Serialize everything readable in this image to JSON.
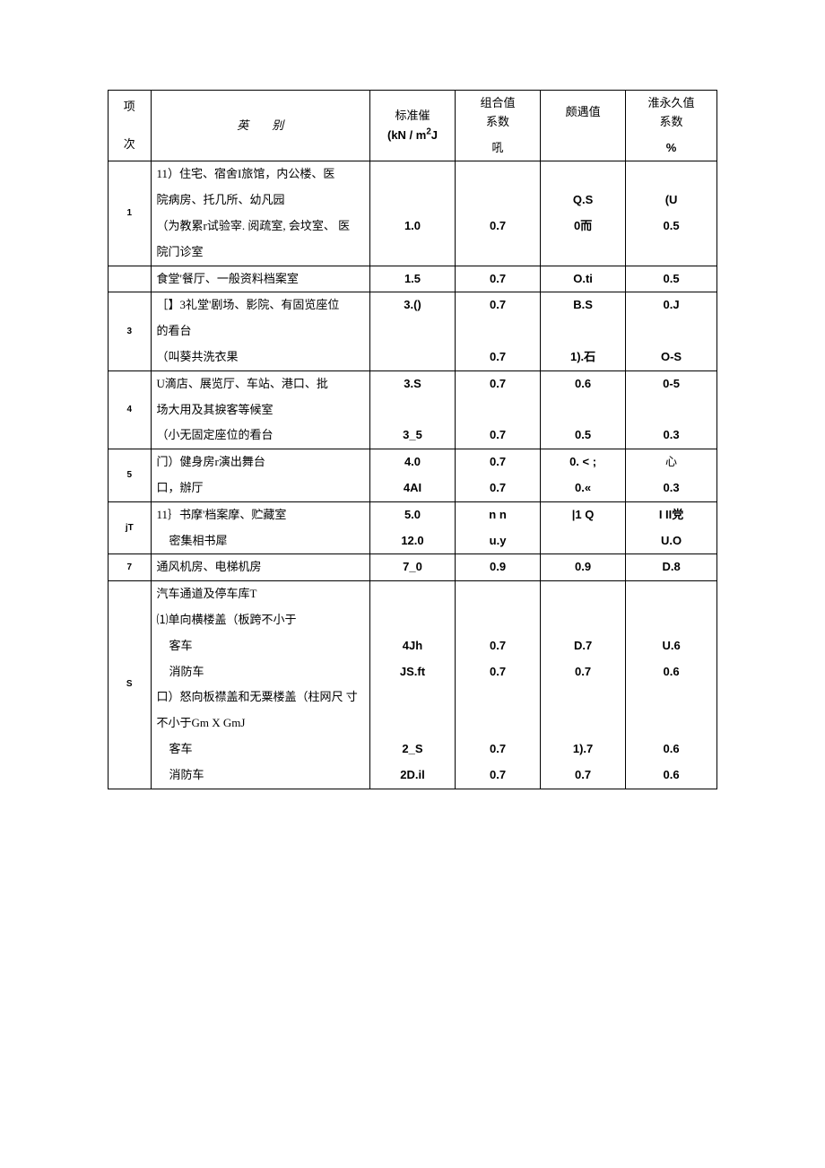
{
  "header": {
    "col1_line1": "项",
    "col1_line2": "次",
    "col2_label_a": "英",
    "col2_label_b": "别",
    "col3_line1": "标准催",
    "col3_unit_pre": "(kN / m",
    "col3_unit_sup": "2",
    "col3_unit_post": "J",
    "col4_line1": "组合值",
    "col4_line2": "系数",
    "col4_line3": "吼",
    "col5_line1": "颇遇值",
    "col6_line1": "淮永久值",
    "col6_line2": "系数",
    "col6_line3": "%"
  },
  "rows": [
    {
      "idx": "1",
      "lines": [
        {
          "cat": "11）住宅、宿舍I旅馆，内公楼、医",
          "std": "",
          "comb": "",
          "freq": "",
          "perm": ""
        },
        {
          "cat": "院病房、托几所、幼凡园",
          "std": "",
          "comb": "",
          "freq": "Q.S",
          "perm": "(U"
        },
        {
          "cat": "（为教累r试验宰. 阅疏室, 会坟室、 医",
          "std": "1.0",
          "comb": "0.7",
          "freq": "0而",
          "perm": "0.5"
        },
        {
          "cat": "院门诊室",
          "std": "",
          "comb": "",
          "freq": "",
          "perm": ""
        }
      ]
    },
    {
      "idx": "",
      "lines": [
        {
          "cat": "食堂'餐厅、一般资料档案室",
          "std": "1.5",
          "comb": "0.7",
          "freq": "O.ti",
          "perm": "0.5"
        }
      ]
    },
    {
      "idx": "3",
      "lines": [
        {
          "cat": "［】3礼堂'剧场、影院、有固览座位",
          "std": "3.()",
          "comb": "0.7",
          "freq": "B.S",
          "perm": "0.J"
        },
        {
          "cat": "的看台",
          "std": "",
          "comb": "",
          "freq": "",
          "perm": ""
        },
        {
          "cat": "（叫葵共洗衣果",
          "std": "",
          "comb": "0.7",
          "freq": "1).石",
          "perm": "O-S"
        }
      ]
    },
    {
      "idx": "4",
      "lines": [
        {
          "cat": "U滴店、展览厅、车站、港口、批",
          "std": "3.S",
          "comb": "0.7",
          "freq": "0.6",
          "perm": "0-5"
        },
        {
          "cat": "场大用及其捩客等候室",
          "std": "",
          "comb": "",
          "freq": "",
          "perm": ""
        },
        {
          "cat": "（小无固定座位的看台",
          "std": "3_5",
          "comb": "0.7",
          "freq": "0.5",
          "perm": "0.3"
        }
      ]
    },
    {
      "idx": "5",
      "lines": [
        {
          "cat": "门）健身房r演出舞台",
          "std": "4.0",
          "comb": "0.7",
          "freq": "0. < ;",
          "perm": "心"
        },
        {
          "cat": "口，辦厅",
          "std": "4AI",
          "comb": "0.7",
          "freq": "0.«",
          "perm": "0.3"
        }
      ]
    },
    {
      "idx": "jT",
      "lines": [
        {
          "cat": "11｝书摩'档案摩、贮藏室",
          "std": "5.0",
          "comb": "n n",
          "freq": "|1 Q",
          "perm": "I II党"
        },
        {
          "cat": "密集相书犀",
          "std": "12.0",
          "comb": "u.y",
          "freq": "",
          "perm": "U.O"
        }
      ]
    },
    {
      "idx": "7",
      "lines": [
        {
          "cat": "通风机房、电梯机房",
          "std": "7_0",
          "comb": "0.9",
          "freq": "0.9",
          "perm": "D.8"
        }
      ]
    },
    {
      "idx": "S",
      "lines": [
        {
          "cat": "汽车通道及停车库T",
          "std": "",
          "comb": "",
          "freq": "",
          "perm": ""
        },
        {
          "cat": "⑴单向横楼盖（板跨不小于",
          "std": "",
          "comb": "",
          "freq": "",
          "perm": ""
        },
        {
          "cat": "客车",
          "std": "4Jh",
          "comb": "0.7",
          "freq": "D.7",
          "perm": "U.6",
          "indent": true
        },
        {
          "cat": "消防车",
          "std": "JS.ft",
          "comb": "0.7",
          "freq": "0.7",
          "perm": "0.6",
          "indent": true
        },
        {
          "cat": "口）怒向板襟盖和无粟楼盖（柱网尺 寸",
          "std": "",
          "comb": "",
          "freq": "",
          "perm": ""
        },
        {
          "cat": "不小于Gm X GmJ",
          "std": "",
          "comb": "",
          "freq": "",
          "perm": ""
        },
        {
          "cat": "客车",
          "std": "2_S",
          "comb": "0.7",
          "freq": "1).7",
          "perm": "0.6",
          "indent": true
        },
        {
          "cat": "消防车",
          "std": "2D.il",
          "comb": "0.7",
          "freq": "0.7",
          "perm": "0.6",
          "indent": true
        }
      ]
    }
  ]
}
